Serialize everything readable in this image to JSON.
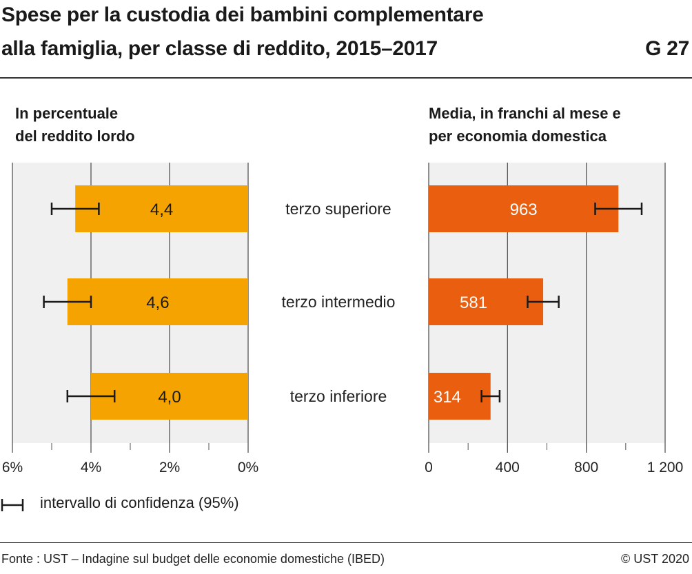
{
  "header": {
    "title_line1": "Spese per la custodia dei bambini complementare",
    "title_line2": "alla famiglia, per classe di reddito, 2015–2017",
    "code": "G 27"
  },
  "chart_data": [
    {
      "type": "bar",
      "orientation": "horizontal",
      "subtitle": "In percentuale\ndel reddito lordo",
      "categories": [
        "terzo superiore",
        "terzo intermedio",
        "terzo inferiore"
      ],
      "values": [
        4.4,
        4.6,
        4.0
      ],
      "value_labels": [
        "4,4",
        "4,6",
        "4,0"
      ],
      "ci_low": [
        3.8,
        4.0,
        3.4
      ],
      "ci_high": [
        5.0,
        5.2,
        4.6
      ],
      "xlim": [
        0,
        6
      ],
      "x_reversed": true,
      "ticks": [
        6,
        4,
        2,
        0
      ],
      "tick_labels": [
        "6%",
        "4%",
        "2%",
        "0%"
      ],
      "color": "#f5a300",
      "grid": true
    },
    {
      "type": "bar",
      "orientation": "horizontal",
      "subtitle": "Media, in franchi al mese e\nper economia domestica",
      "categories": [
        "terzo superiore",
        "terzo intermedio",
        "terzo inferiore"
      ],
      "values": [
        963,
        581,
        314
      ],
      "value_labels": [
        "963",
        "581",
        "314"
      ],
      "ci_low": [
        845,
        502,
        268
      ],
      "ci_high": [
        1081,
        660,
        360
      ],
      "xlim": [
        0,
        1200
      ],
      "ticks": [
        0,
        400,
        800,
        1200
      ],
      "tick_labels": [
        "0",
        "400",
        "800",
        "1 200"
      ],
      "color": "#e95e0f",
      "grid": true
    }
  ],
  "legend": {
    "label": "intervallo di confidenza (95%)"
  },
  "footer": {
    "source": "Fonte : UST – Indagine sul budget delle economie domestiche (IBED)",
    "copyright": "© UST 2020"
  }
}
